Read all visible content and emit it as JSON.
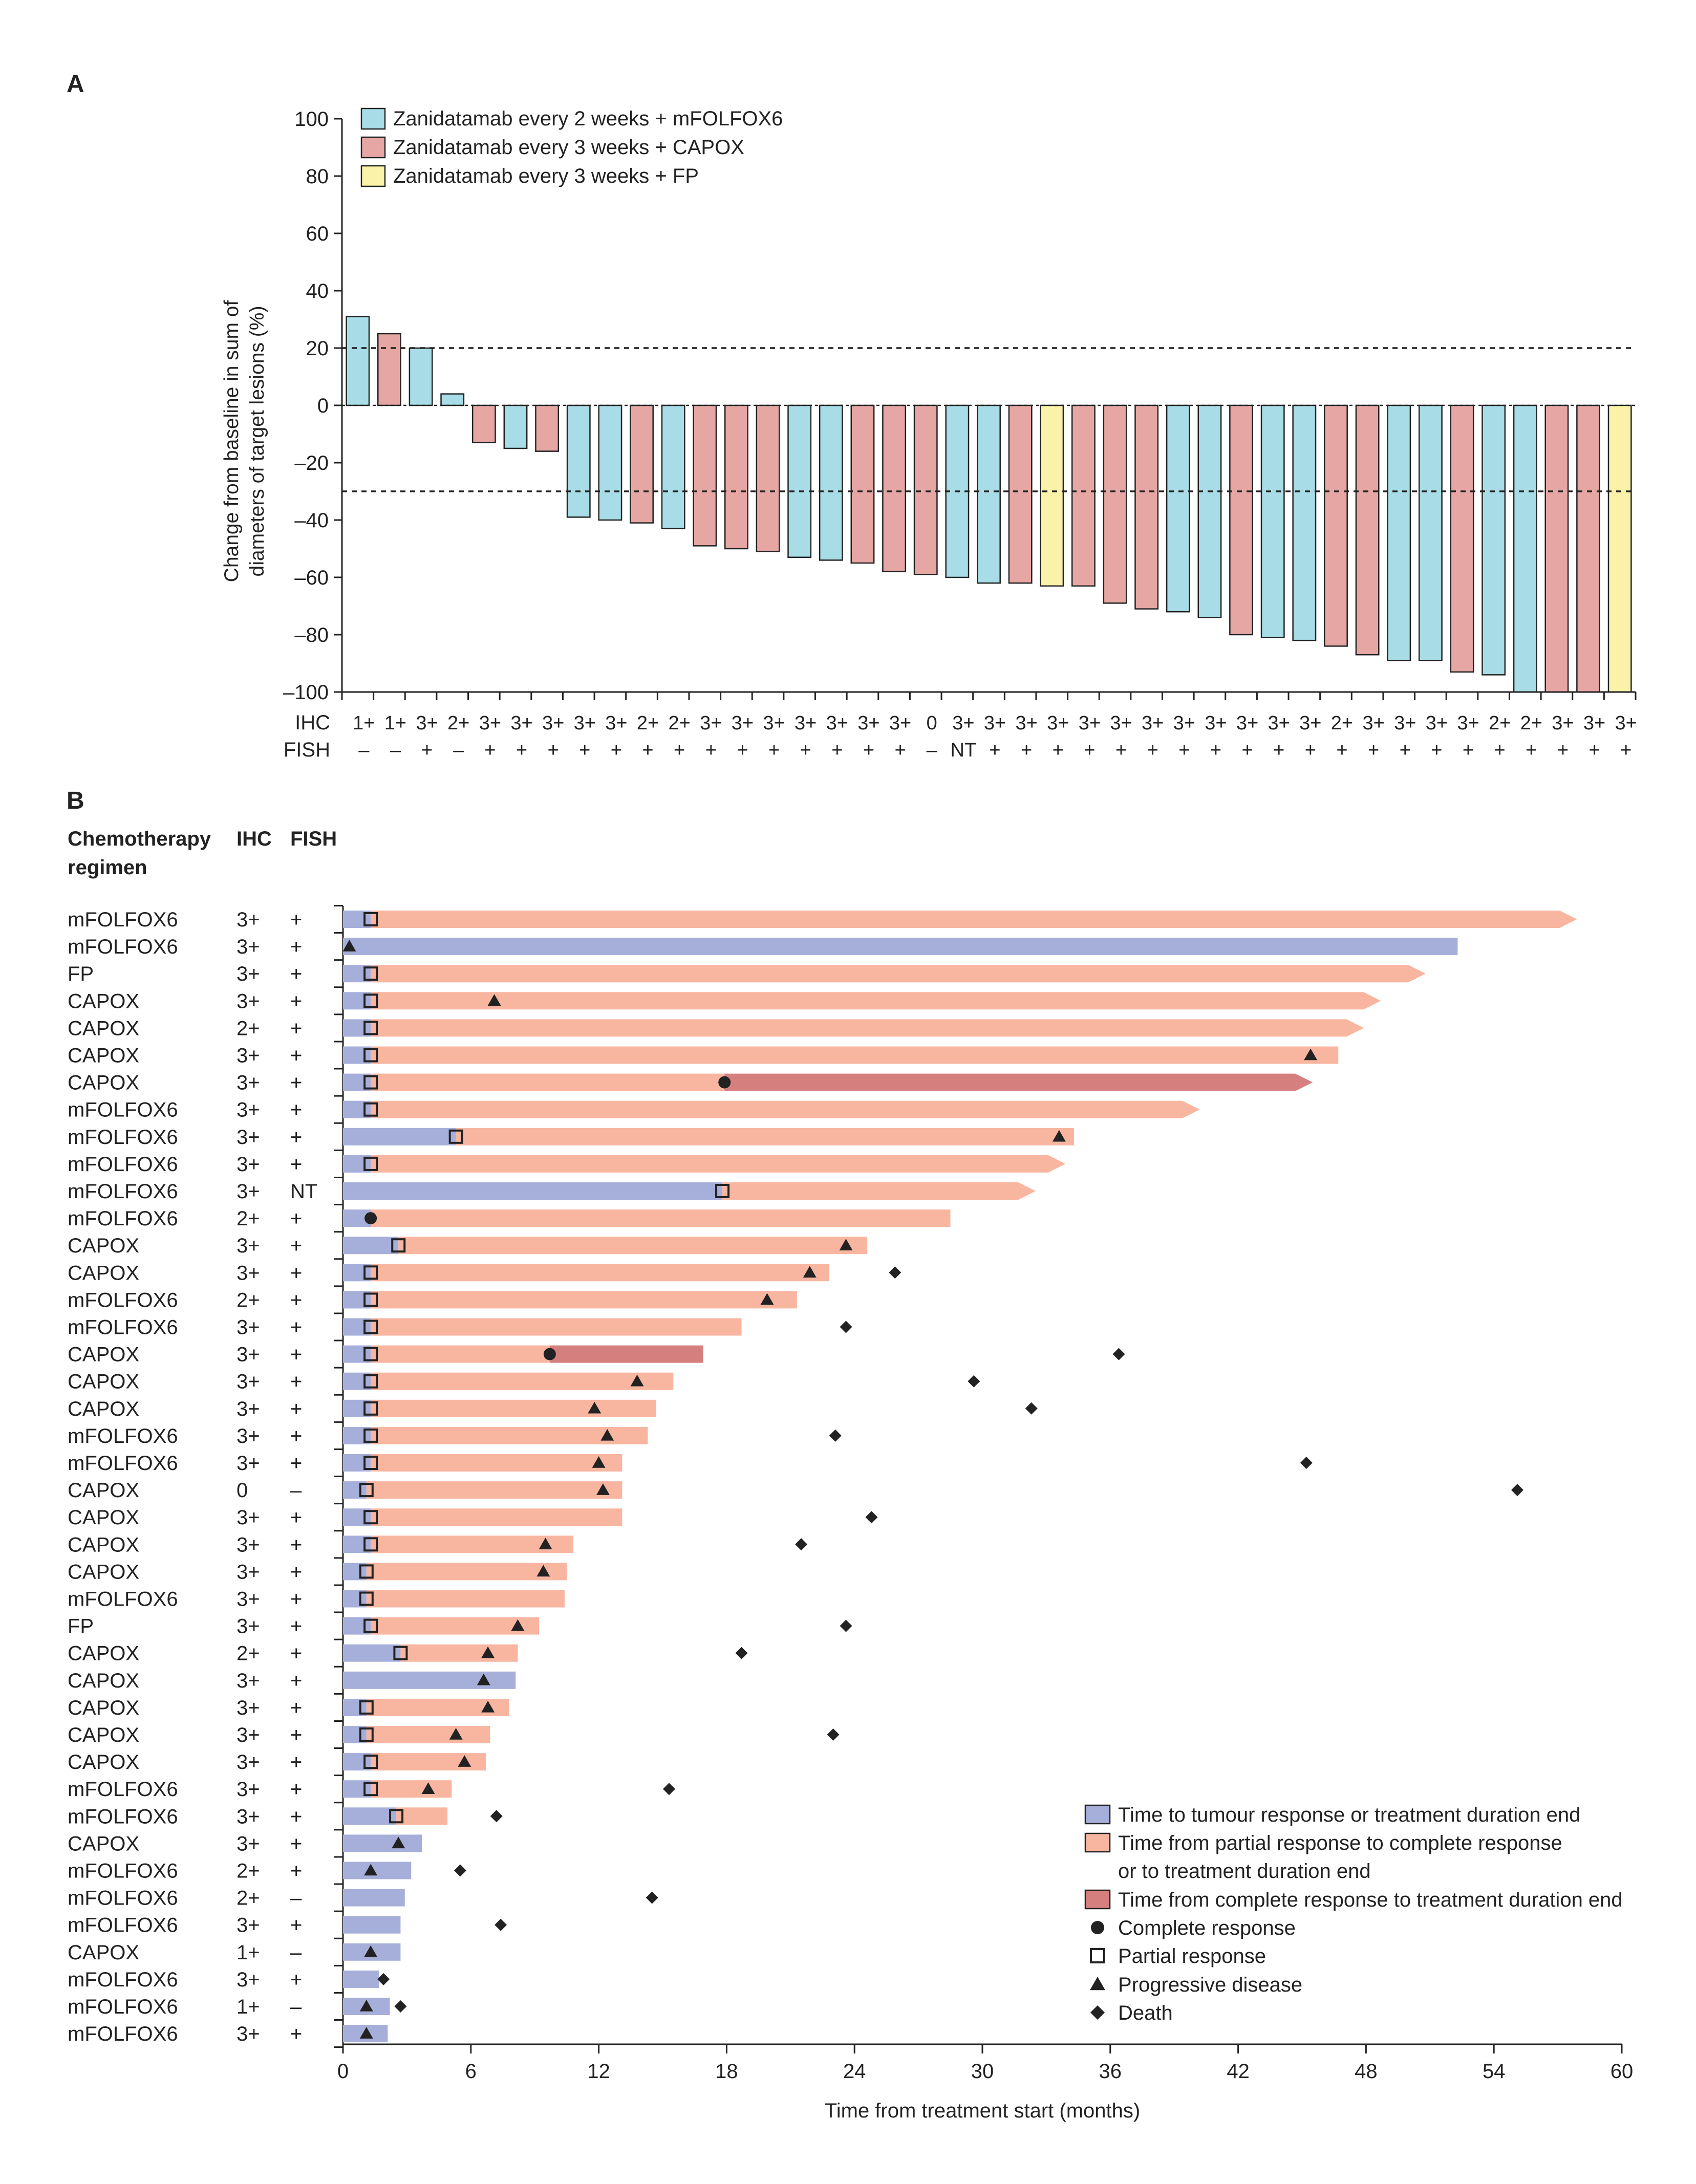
{
  "panel_a_label": "A",
  "panel_b_label": "B",
  "colors": {
    "blue": "#a8dce6",
    "pink": "#e6a7a4",
    "yellow": "#faf2a8",
    "ttr": "#a6afd9",
    "pr": "#f8b6a0",
    "cr": "#d67f7f",
    "ink": "#222222"
  },
  "chart_data": [
    {
      "type": "bar",
      "title": "",
      "xlabel": "",
      "ylabel_lines": [
        "Change from baseline in sum of",
        "diameters of target lesions (%)"
      ],
      "ylim": [
        -100,
        100
      ],
      "yticks": [
        100,
        80,
        60,
        40,
        20,
        0,
        -20,
        -40,
        -60,
        -80,
        -100
      ],
      "yticklabels": [
        "100",
        "80",
        "60",
        "40",
        "20",
        "0",
        "–20",
        "–40",
        "–60",
        "–80",
        "–100"
      ],
      "reference_lines": [
        20,
        -30
      ],
      "legend_position": "top-left",
      "legend": [
        {
          "label": "Zanidatamab every 2 weeks + mFOLFOX6",
          "color_key": "blue"
        },
        {
          "label": "Zanidatamab every 3 weeks + CAPOX",
          "color_key": "pink"
        },
        {
          "label": "Zanidatamab every 3 weeks + FP",
          "color_key": "yellow"
        }
      ],
      "row_labels": {
        "ihc": "IHC",
        "fish": "FISH"
      },
      "values": [
        31,
        25,
        20,
        4,
        -13,
        -15,
        -16,
        -39,
        -40,
        -41,
        -43,
        -49,
        -50,
        -51,
        -53,
        -54,
        -55,
        -58,
        -59,
        -60,
        -62,
        -62,
        -63,
        -63,
        -69,
        -71,
        -72,
        -74,
        -80,
        -81,
        -82,
        -84,
        -87,
        -89,
        -89,
        -93,
        -94,
        -100,
        -100,
        -100,
        -100
      ],
      "groups": [
        "blue",
        "pink",
        "blue",
        "blue",
        "pink",
        "blue",
        "pink",
        "blue",
        "blue",
        "pink",
        "blue",
        "pink",
        "pink",
        "pink",
        "blue",
        "blue",
        "pink",
        "pink",
        "pink",
        "blue",
        "blue",
        "pink",
        "yellow",
        "pink",
        "pink",
        "pink",
        "blue",
        "blue",
        "pink",
        "blue",
        "blue",
        "pink",
        "pink",
        "blue",
        "blue",
        "pink",
        "blue",
        "blue",
        "pink",
        "pink",
        "yellow"
      ],
      "ihc": [
        "1+",
        "1+",
        "3+",
        "2+",
        "3+",
        "3+",
        "3+",
        "3+",
        "3+",
        "2+",
        "2+",
        "3+",
        "3+",
        "3+",
        "3+",
        "3+",
        "3+",
        "3+",
        "0",
        "3+",
        "3+",
        "3+",
        "3+",
        "3+",
        "3+",
        "3+",
        "3+",
        "3+",
        "3+",
        "3+",
        "3+",
        "2+",
        "3+",
        "3+",
        "3+",
        "3+",
        "2+",
        "2+",
        "3+",
        "3+",
        "3+"
      ],
      "fish": [
        "–",
        "–",
        "+",
        "–",
        "+",
        "+",
        "+",
        "+",
        "+",
        "+",
        "+",
        "+",
        "+",
        "+",
        "+",
        "+",
        "+",
        "+",
        "–",
        "NT",
        "+",
        "+",
        "+",
        "+",
        "+",
        "+",
        "+",
        "+",
        "+",
        "+",
        "+",
        "+",
        "+",
        "+",
        "+",
        "+",
        "+",
        "+",
        "+",
        "+",
        "+"
      ]
    },
    {
      "type": "swimmer",
      "title": "",
      "xlabel": "Time from treatment start (months)",
      "xlim": [
        0,
        60
      ],
      "xticks": [
        0,
        6,
        12,
        18,
        24,
        30,
        36,
        42,
        48,
        54,
        60
      ],
      "headers": {
        "regimen_line1": "Chemotherapy",
        "regimen_line2": "regimen",
        "ihc": "IHC",
        "fish": "FISH"
      },
      "legend_position": "bottom-right",
      "legend": {
        "ttr": "Time to tumour response or treatment duration end",
        "pr_line1": "Time from partial response to complete response",
        "pr_line2": "or to treatment duration end",
        "cr": "Time from complete response to treatment duration end",
        "complete": "Complete response",
        "partial": "Partial response",
        "progressive": "Progressive disease",
        "death": "Death"
      },
      "patients": [
        {
          "regimen": "mFOLFOX6",
          "ihc": "3+",
          "fish": "+",
          "ttr": 1.3,
          "pr_end": 57.9,
          "cr_end": null,
          "arrow": true,
          "marker": "partial",
          "marker_at": 1.3,
          "pd": null,
          "death": null
        },
        {
          "regimen": "mFOLFOX6",
          "ihc": "3+",
          "fish": "+",
          "ttr": 52.3,
          "pr_end": null,
          "cr_end": null,
          "arrow": false,
          "marker": null,
          "marker_at": null,
          "pd": 0.3,
          "death": null
        },
        {
          "regimen": "FP",
          "ihc": "3+",
          "fish": "+",
          "ttr": 1.3,
          "pr_end": 50.8,
          "cr_end": null,
          "arrow": true,
          "marker": "partial",
          "marker_at": 1.3,
          "pd": null,
          "death": null
        },
        {
          "regimen": "CAPOX",
          "ihc": "3+",
          "fish": "+",
          "ttr": 1.3,
          "pr_end": 48.7,
          "cr_end": null,
          "arrow": true,
          "marker": "partial",
          "marker_at": 1.3,
          "pd": 7.1,
          "death": null
        },
        {
          "regimen": "CAPOX",
          "ihc": "2+",
          "fish": "+",
          "ttr": 1.3,
          "pr_end": 47.9,
          "cr_end": null,
          "arrow": true,
          "marker": "partial",
          "marker_at": 1.3,
          "pd": null,
          "death": null
        },
        {
          "regimen": "CAPOX",
          "ihc": "3+",
          "fish": "+",
          "ttr": 1.3,
          "pr_end": 46.7,
          "cr_end": null,
          "arrow": false,
          "marker": "partial",
          "marker_at": 1.3,
          "pd": 45.4,
          "death": null
        },
        {
          "regimen": "CAPOX",
          "ihc": "3+",
          "fish": "+",
          "ttr": 1.3,
          "pr_end": 17.9,
          "cr_end": 45.5,
          "arrow": true,
          "marker": "partial",
          "marker_at": 1.3,
          "cr_marker": 17.9,
          "pd": null,
          "death": null
        },
        {
          "regimen": "mFOLFOX6",
          "ihc": "3+",
          "fish": "+",
          "ttr": 1.3,
          "pr_end": 40.2,
          "cr_end": null,
          "arrow": true,
          "marker": "partial",
          "marker_at": 1.3,
          "pd": null,
          "death": null
        },
        {
          "regimen": "mFOLFOX6",
          "ihc": "3+",
          "fish": "+",
          "ttr": 5.3,
          "pr_end": 34.3,
          "cr_end": null,
          "arrow": false,
          "marker": "partial",
          "marker_at": 5.3,
          "pd": 33.6,
          "death": null
        },
        {
          "regimen": "mFOLFOX6",
          "ihc": "3+",
          "fish": "+",
          "ttr": 1.3,
          "pr_end": 33.9,
          "cr_end": null,
          "arrow": true,
          "marker": "partial",
          "marker_at": 1.3,
          "pd": null,
          "death": null
        },
        {
          "regimen": "mFOLFOX6",
          "ihc": "3+",
          "fish": "NT",
          "ttr": 17.8,
          "pr_end": 32.5,
          "cr_end": null,
          "arrow": true,
          "marker": "partial",
          "marker_at": 17.8,
          "pd": null,
          "death": null
        },
        {
          "regimen": "mFOLFOX6",
          "ihc": "2+",
          "fish": "+",
          "ttr": 1.3,
          "pr_end": 28.5,
          "cr_end": null,
          "arrow": false,
          "marker": "complete",
          "marker_at": 1.3,
          "pd": null,
          "death": null
        },
        {
          "regimen": "CAPOX",
          "ihc": "3+",
          "fish": "+",
          "ttr": 2.6,
          "pr_end": 24.6,
          "cr_end": null,
          "arrow": false,
          "marker": "partial",
          "marker_at": 2.6,
          "pd": 23.6,
          "death": null
        },
        {
          "regimen": "CAPOX",
          "ihc": "3+",
          "fish": "+",
          "ttr": 1.3,
          "pr_end": 22.8,
          "cr_end": null,
          "arrow": false,
          "marker": "partial",
          "marker_at": 1.3,
          "pd": 21.9,
          "death": 25.9
        },
        {
          "regimen": "mFOLFOX6",
          "ihc": "2+",
          "fish": "+",
          "ttr": 1.3,
          "pr_end": 21.3,
          "cr_end": null,
          "arrow": false,
          "marker": "partial",
          "marker_at": 1.3,
          "pd": 19.9,
          "death": null
        },
        {
          "regimen": "mFOLFOX6",
          "ihc": "3+",
          "fish": "+",
          "ttr": 1.3,
          "pr_end": 18.7,
          "cr_end": null,
          "arrow": false,
          "marker": "partial",
          "marker_at": 1.3,
          "pd": null,
          "death": 23.6
        },
        {
          "regimen": "CAPOX",
          "ihc": "3+",
          "fish": "+",
          "ttr": 1.3,
          "pr_end": 9.7,
          "cr_end": 16.9,
          "arrow": false,
          "marker": "partial",
          "marker_at": 1.3,
          "cr_marker": 9.7,
          "pd": null,
          "death": 36.4
        },
        {
          "regimen": "CAPOX",
          "ihc": "3+",
          "fish": "+",
          "ttr": 1.3,
          "pr_end": 15.5,
          "cr_end": null,
          "arrow": false,
          "marker": "partial",
          "marker_at": 1.3,
          "pd": 13.8,
          "death": 29.6
        },
        {
          "regimen": "CAPOX",
          "ihc": "3+",
          "fish": "+",
          "ttr": 1.3,
          "pr_end": 14.7,
          "cr_end": null,
          "arrow": false,
          "marker": "partial",
          "marker_at": 1.3,
          "pd": 11.8,
          "death": 32.3
        },
        {
          "regimen": "mFOLFOX6",
          "ihc": "3+",
          "fish": "+",
          "ttr": 1.3,
          "pr_end": 14.3,
          "cr_end": null,
          "arrow": false,
          "marker": "partial",
          "marker_at": 1.3,
          "pd": 12.4,
          "death": 23.1
        },
        {
          "regimen": "mFOLFOX6",
          "ihc": "3+",
          "fish": "+",
          "ttr": 1.3,
          "pr_end": 13.1,
          "cr_end": null,
          "arrow": false,
          "marker": "partial",
          "marker_at": 1.3,
          "pd": 12.0,
          "death": 45.2
        },
        {
          "regimen": "CAPOX",
          "ihc": "0",
          "fish": "–",
          "ttr": 1.1,
          "pr_end": 13.1,
          "cr_end": null,
          "arrow": false,
          "marker": "partial",
          "marker_at": 1.1,
          "pd": 12.2,
          "death": 55.1
        },
        {
          "regimen": "CAPOX",
          "ihc": "3+",
          "fish": "+",
          "ttr": 1.3,
          "pr_end": 13.1,
          "cr_end": null,
          "arrow": false,
          "marker": "partial",
          "marker_at": 1.3,
          "pd": null,
          "death": 24.8
        },
        {
          "regimen": "CAPOX",
          "ihc": "3+",
          "fish": "+",
          "ttr": 1.3,
          "pr_end": 10.8,
          "cr_end": null,
          "arrow": false,
          "marker": "partial",
          "marker_at": 1.3,
          "pd": 9.5,
          "death": 21.5
        },
        {
          "regimen": "CAPOX",
          "ihc": "3+",
          "fish": "+",
          "ttr": 1.1,
          "pr_end": 10.5,
          "cr_end": null,
          "arrow": false,
          "marker": "partial",
          "marker_at": 1.1,
          "pd": 9.4,
          "death": null
        },
        {
          "regimen": "mFOLFOX6",
          "ihc": "3+",
          "fish": "+",
          "ttr": 1.1,
          "pr_end": 10.4,
          "cr_end": null,
          "arrow": false,
          "marker": "partial",
          "marker_at": 1.1,
          "pd": null,
          "death": null
        },
        {
          "regimen": "FP",
          "ihc": "3+",
          "fish": "+",
          "ttr": 1.3,
          "pr_end": 9.2,
          "cr_end": null,
          "arrow": false,
          "marker": "partial",
          "marker_at": 1.3,
          "pd": 8.2,
          "death": 23.6
        },
        {
          "regimen": "CAPOX",
          "ihc": "2+",
          "fish": "+",
          "ttr": 2.7,
          "pr_end": 8.2,
          "cr_end": null,
          "arrow": false,
          "marker": "partial",
          "marker_at": 2.7,
          "pd": 6.8,
          "death": 18.7
        },
        {
          "regimen": "CAPOX",
          "ihc": "3+",
          "fish": "+",
          "ttr": 8.1,
          "pr_end": null,
          "cr_end": null,
          "arrow": false,
          "marker": null,
          "marker_at": null,
          "pd": 6.6,
          "death": null
        },
        {
          "regimen": "CAPOX",
          "ihc": "3+",
          "fish": "+",
          "ttr": 1.1,
          "pr_end": 7.8,
          "cr_end": null,
          "arrow": false,
          "marker": "partial",
          "marker_at": 1.1,
          "pd": 6.8,
          "death": null
        },
        {
          "regimen": "CAPOX",
          "ihc": "3+",
          "fish": "+",
          "ttr": 1.1,
          "pr_end": 6.9,
          "cr_end": null,
          "arrow": false,
          "marker": "partial",
          "marker_at": 1.1,
          "pd": 5.3,
          "death": 23.0
        },
        {
          "regimen": "CAPOX",
          "ihc": "3+",
          "fish": "+",
          "ttr": 1.3,
          "pr_end": 6.7,
          "cr_end": null,
          "arrow": false,
          "marker": "partial",
          "marker_at": 1.3,
          "pd": 5.7,
          "death": null
        },
        {
          "regimen": "mFOLFOX6",
          "ihc": "3+",
          "fish": "+",
          "ttr": 1.3,
          "pr_end": 5.1,
          "cr_end": null,
          "arrow": false,
          "marker": "partial",
          "marker_at": 1.3,
          "pd": 4.0,
          "death": 15.3
        },
        {
          "regimen": "mFOLFOX6",
          "ihc": "3+",
          "fish": "+",
          "ttr": 2.5,
          "pr_end": 4.9,
          "cr_end": null,
          "arrow": false,
          "marker": "partial",
          "marker_at": 2.5,
          "pd": null,
          "death": 7.2
        },
        {
          "regimen": "CAPOX",
          "ihc": "3+",
          "fish": "+",
          "ttr": 3.7,
          "pr_end": null,
          "cr_end": null,
          "arrow": false,
          "marker": null,
          "marker_at": null,
          "pd": 2.6,
          "death": null
        },
        {
          "regimen": "mFOLFOX6",
          "ihc": "2+",
          "fish": "+",
          "ttr": 3.2,
          "pr_end": null,
          "cr_end": null,
          "arrow": false,
          "marker": null,
          "marker_at": null,
          "pd": 1.3,
          "death": 5.5
        },
        {
          "regimen": "mFOLFOX6",
          "ihc": "2+",
          "fish": "–",
          "ttr": 2.9,
          "pr_end": null,
          "cr_end": null,
          "arrow": false,
          "marker": null,
          "marker_at": null,
          "pd": null,
          "death": 14.5
        },
        {
          "regimen": "mFOLFOX6",
          "ihc": "3+",
          "fish": "+",
          "ttr": 2.7,
          "pr_end": null,
          "cr_end": null,
          "arrow": false,
          "marker": null,
          "marker_at": null,
          "pd": null,
          "death": 7.4
        },
        {
          "regimen": "CAPOX",
          "ihc": "1+",
          "fish": "–",
          "ttr": 2.7,
          "pr_end": null,
          "cr_end": null,
          "arrow": false,
          "marker": null,
          "marker_at": null,
          "pd": 1.3,
          "death": null
        },
        {
          "regimen": "mFOLFOX6",
          "ihc": "3+",
          "fish": "+",
          "ttr": 1.7,
          "pr_end": null,
          "cr_end": null,
          "arrow": false,
          "marker": null,
          "marker_at": null,
          "pd": null,
          "death": 1.9
        },
        {
          "regimen": "mFOLFOX6",
          "ihc": "1+",
          "fish": "–",
          "ttr": 2.2,
          "pr_end": null,
          "cr_end": null,
          "arrow": false,
          "marker": null,
          "marker_at": null,
          "pd": 1.1,
          "death": 2.7
        },
        {
          "regimen": "mFOLFOX6",
          "ihc": "3+",
          "fish": "+",
          "ttr": 2.1,
          "pr_end": null,
          "cr_end": null,
          "arrow": false,
          "marker": null,
          "marker_at": null,
          "pd": 1.1,
          "death": null
        }
      ]
    }
  ]
}
